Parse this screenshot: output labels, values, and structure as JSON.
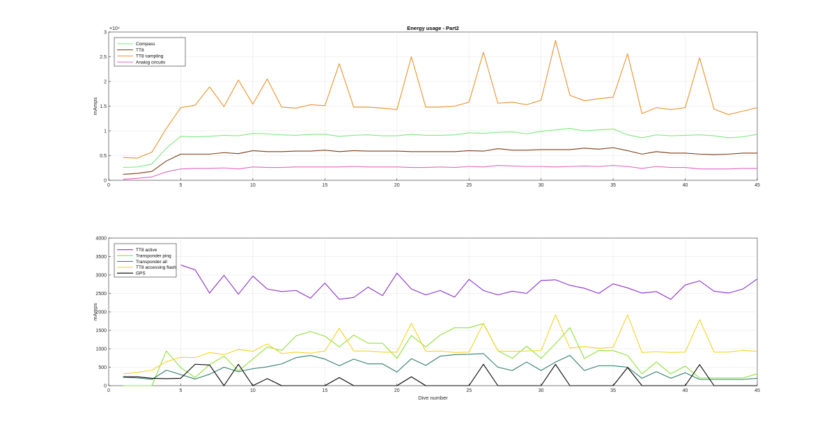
{
  "chart_data": [
    {
      "type": "line",
      "title": "Energy usage - Part2",
      "xlabel": "",
      "ylabel": "mAmps",
      "y_exponent_label": "×10⁴",
      "xlim": [
        0,
        45
      ],
      "ylim": [
        0,
        30000
      ],
      "xticks": [
        0,
        5,
        10,
        15,
        20,
        25,
        30,
        35,
        40,
        45
      ],
      "xtick_labels": [
        "0",
        "5",
        "10",
        "15",
        "20",
        "25",
        "30",
        "35",
        "40",
        "45"
      ],
      "yticks": [
        0,
        5000,
        10000,
        15000,
        20000,
        25000,
        30000
      ],
      "ytick_labels": [
        "0",
        "0.5",
        "1",
        "1.5",
        "2",
        "2.5",
        "3"
      ],
      "grid": true,
      "legend_position": "top-left",
      "x": [
        1,
        2,
        3,
        4,
        5,
        6,
        7,
        8,
        9,
        10,
        11,
        12,
        13,
        14,
        15,
        16,
        17,
        18,
        19,
        20,
        21,
        22,
        23,
        24,
        25,
        26,
        27,
        28,
        29,
        30,
        31,
        32,
        33,
        34,
        35,
        36,
        37,
        38,
        39,
        40,
        41,
        42,
        43,
        44,
        45
      ],
      "series": [
        {
          "name": "Compass",
          "color": "#7fe87f",
          "values": [
            2600,
            2700,
            3300,
            6500,
            8900,
            8800,
            8900,
            9100,
            9000,
            9500,
            9400,
            9200,
            9100,
            9300,
            9300,
            8900,
            9100,
            9200,
            9000,
            9000,
            9300,
            9100,
            9100,
            9200,
            9600,
            9500,
            9700,
            9800,
            9400,
            9900,
            10200,
            10500,
            10000,
            10200,
            10400,
            9200,
            8600,
            9200,
            9000,
            9100,
            9200,
            9000,
            8600,
            8800,
            9300
          ]
        },
        {
          "name": "TT8",
          "color": "#7a3b12",
          "values": [
            1200,
            1400,
            1800,
            3900,
            5300,
            5300,
            5300,
            5600,
            5400,
            6000,
            5800,
            5800,
            5900,
            5900,
            6100,
            5800,
            6000,
            5900,
            5900,
            5900,
            5800,
            5800,
            5800,
            5800,
            6000,
            5900,
            6400,
            6100,
            6100,
            6200,
            6200,
            6200,
            6500,
            6300,
            6600,
            6000,
            5300,
            5800,
            5500,
            5500,
            5300,
            5200,
            5300,
            5500,
            5500
          ]
        },
        {
          "name": "TT8 sampling",
          "color": "#e8922b",
          "values": [
            4600,
            4500,
            5700,
            10500,
            14700,
            15200,
            18900,
            14900,
            20300,
            15400,
            20500,
            14800,
            14600,
            15300,
            15100,
            23600,
            14800,
            14800,
            14600,
            14300,
            25000,
            14800,
            14800,
            15000,
            15800,
            25900,
            15600,
            15800,
            15300,
            16200,
            28300,
            17200,
            16100,
            16500,
            16800,
            25600,
            13500,
            14700,
            14300,
            14700,
            24800,
            14400,
            13300,
            14000,
            14700
          ]
        },
        {
          "name": "Analog circuits",
          "color": "#e066c2",
          "values": [
            200,
            400,
            700,
            1700,
            2300,
            2400,
            2400,
            2500,
            2300,
            2700,
            2600,
            2600,
            2700,
            2700,
            2700,
            2700,
            2800,
            2700,
            2700,
            2700,
            2600,
            2600,
            2700,
            2600,
            2800,
            2700,
            3000,
            2900,
            2800,
            2800,
            2700,
            2800,
            2900,
            2800,
            3000,
            2800,
            2400,
            2800,
            2600,
            2600,
            2300,
            2300,
            2300,
            2400,
            2400
          ]
        }
      ]
    },
    {
      "type": "line",
      "title": "",
      "xlabel": "Dive number",
      "ylabel": "mAmps",
      "xlim": [
        0,
        45
      ],
      "ylim": [
        0,
        4000
      ],
      "xticks": [
        0,
        5,
        10,
        15,
        20,
        25,
        30,
        35,
        40,
        45
      ],
      "xtick_labels": [
        "0",
        "5",
        "10",
        "15",
        "20",
        "25",
        "30",
        "35",
        "40",
        "45"
      ],
      "yticks": [
        0,
        500,
        1000,
        1500,
        2000,
        2500,
        3000,
        3500,
        4000
      ],
      "ytick_labels": [
        "0",
        "500",
        "1000",
        "1500",
        "2000",
        "2500",
        "3000",
        "3500",
        "4000"
      ],
      "grid": true,
      "legend_position": "top-left",
      "x": [
        1,
        2,
        3,
        4,
        5,
        6,
        7,
        8,
        9,
        10,
        11,
        12,
        13,
        14,
        15,
        16,
        17,
        18,
        19,
        20,
        21,
        22,
        23,
        24,
        25,
        26,
        27,
        28,
        29,
        30,
        31,
        32,
        33,
        34,
        35,
        36,
        37,
        38,
        39,
        40,
        41,
        42,
        43,
        44,
        45
      ],
      "series": [
        {
          "name": "TT8 active",
          "color": "#8b2fc9",
          "x": [
            5,
            6,
            7,
            8,
            9,
            10,
            11,
            12,
            13,
            14,
            15,
            16,
            17,
            18,
            19,
            20,
            21,
            22,
            23,
            24,
            25,
            26,
            27,
            28,
            29,
            30,
            31,
            32,
            33,
            34,
            35,
            36,
            37,
            38,
            39,
            40,
            41,
            42,
            43,
            44,
            45
          ],
          "values": [
            3270,
            3140,
            2510,
            2990,
            2480,
            2970,
            2620,
            2550,
            2580,
            2370,
            2780,
            2340,
            2390,
            2670,
            2440,
            3050,
            2620,
            2460,
            2580,
            2400,
            2880,
            2580,
            2460,
            2560,
            2500,
            2850,
            2870,
            2720,
            2640,
            2500,
            2760,
            2650,
            2510,
            2550,
            2340,
            2730,
            2840,
            2560,
            2510,
            2620,
            2890
          ]
        },
        {
          "name": "Transponder ping",
          "color": "#8ee03a",
          "values": [
            0,
            0,
            0,
            940,
            490,
            220,
            570,
            800,
            400,
            720,
            1050,
            950,
            1350,
            1470,
            1340,
            1050,
            1370,
            1150,
            1150,
            740,
            1360,
            1050,
            1370,
            1570,
            1570,
            1680,
            950,
            740,
            1070,
            740,
            1140,
            1570,
            740,
            950,
            950,
            820,
            320,
            640,
            320,
            530,
            210,
            210,
            210,
            210,
            320
          ]
        },
        {
          "name": "Transponder all",
          "color": "#2e7d6b",
          "values": [
            230,
            210,
            170,
            420,
            300,
            180,
            310,
            500,
            380,
            460,
            510,
            590,
            760,
            820,
            720,
            540,
            720,
            590,
            590,
            370,
            730,
            550,
            800,
            840,
            850,
            870,
            500,
            410,
            640,
            410,
            640,
            820,
            410,
            540,
            540,
            500,
            200,
            380,
            200,
            350,
            170,
            170,
            170,
            170,
            200
          ]
        },
        {
          "name": "TT8 accessing flash",
          "color": "#f5d328",
          "values": [
            320,
            360,
            420,
            650,
            770,
            760,
            900,
            840,
            980,
            930,
            1130,
            870,
            910,
            880,
            940,
            1560,
            940,
            940,
            910,
            910,
            1690,
            930,
            940,
            900,
            910,
            1690,
            940,
            930,
            940,
            950,
            1920,
            1020,
            1060,
            1010,
            1040,
            1920,
            900,
            920,
            900,
            910,
            1790,
            910,
            910,
            960,
            930
          ]
        },
        {
          "name": "GPS",
          "color": "#000000",
          "values": [
            240,
            240,
            200,
            190,
            200,
            580,
            560,
            0,
            580,
            0,
            190,
            0,
            0,
            0,
            0,
            220,
            0,
            0,
            0,
            0,
            240,
            0,
            0,
            0,
            0,
            580,
            0,
            0,
            0,
            0,
            580,
            0,
            0,
            0,
            0,
            490,
            0,
            0,
            0,
            0,
            570,
            0,
            0,
            0,
            0
          ]
        }
      ]
    }
  ]
}
